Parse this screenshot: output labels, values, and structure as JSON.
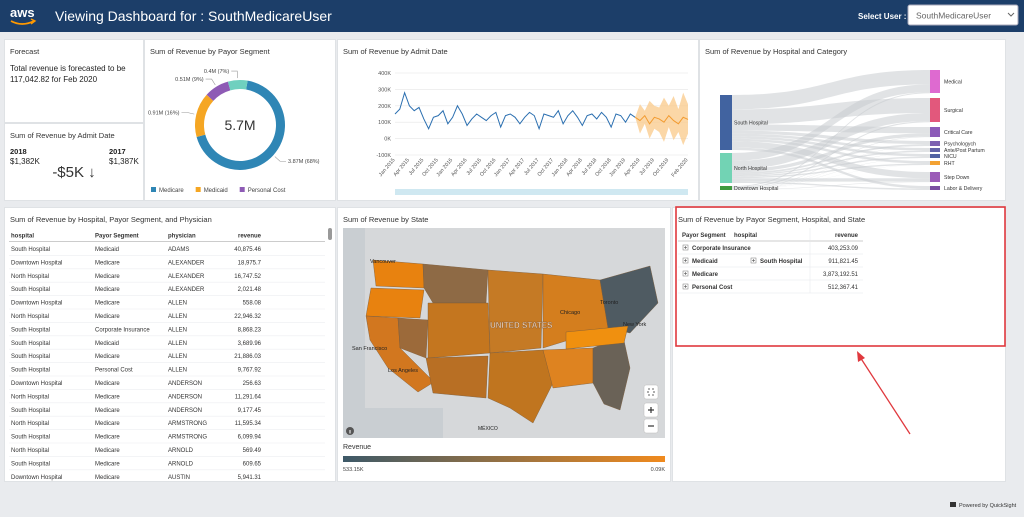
{
  "header": {
    "logo": "aws",
    "title": "Viewing Dashboard for : SouthMedicareUser",
    "select_label": "Select User :",
    "select_value": "SouthMedicareUser"
  },
  "forecast": {
    "title": "Forecast",
    "text": "Total revenue is forecasted to be 117,042.82 for Feb 2020"
  },
  "kpi": {
    "title": "Sum of Revenue by Admit Date",
    "current_label": "2018",
    "current": "$1,382K",
    "previous_label": "2017",
    "previous": "$1,387K",
    "delta": "-$5K ↓"
  },
  "donut": {
    "type": "pie",
    "title": "Sum of Revenue by Payor Segment",
    "center_label": "5.7M",
    "categories": [
      "Medicare",
      "Medicaid",
      "Personal Cost",
      null
    ],
    "values": [
      3.87,
      0.91,
      0.51,
      0.4
    ],
    "value_labels": [
      "3.87M (68%)",
      "0.91M (16%)",
      "0.51M (9%)",
      "0.4M (7%)"
    ],
    "colors": [
      "#2f86b5",
      "#f5a623",
      "#8e5bb5",
      "#6fd0bf"
    ]
  },
  "line": {
    "type": "line",
    "title": "Sum of Revenue by Admit Date",
    "categories": [
      "Jan 2015",
      null,
      null,
      "Apr 2015",
      null,
      null,
      "Jul 2015",
      null,
      null,
      "Oct 2015",
      null,
      null,
      "Jan 2016",
      null,
      null,
      "Apr 2016",
      null,
      null,
      "Jul 2016",
      null,
      null,
      "Oct 2016",
      null,
      null,
      "Jan 2017",
      null,
      null,
      "Apr 2017",
      null,
      null,
      "Jul 2017",
      null,
      null,
      "Oct 2017",
      null,
      null,
      "Jan 2018",
      null,
      null,
      "Apr 2018",
      null,
      null,
      "Jul 2018",
      null,
      null,
      "Oct 2018",
      null,
      null,
      "Jan 2019",
      null,
      null,
      "Apr 2019",
      null,
      null,
      "Jul 2019",
      null,
      null,
      "Oct 2019",
      null,
      null,
      null,
      "Feb 2020"
    ],
    "series": [
      {
        "color": "#2b6fb0",
        "values": [
          150000,
          180000,
          280000,
          200000,
          170000,
          190000,
          120000,
          60000,
          130000,
          140000,
          170000,
          90000,
          130000,
          200000,
          150000,
          80000,
          120000,
          150000,
          130000,
          110000,
          140000,
          160000,
          70000,
          140000,
          150000,
          130000,
          90000,
          130000,
          160000,
          140000,
          60000,
          150000,
          140000,
          130000,
          170000,
          90000,
          140000,
          170000,
          130000,
          80000,
          140000,
          150000,
          120000,
          160000,
          130000,
          70000,
          150000,
          140000,
          100000,
          150000,
          130000,
          null,
          null,
          null,
          null,
          null,
          null,
          null,
          null,
          null,
          null,
          null
        ]
      },
      {
        "color": "#f29b30",
        "band_color": "#f9c98a",
        "values": [
          null,
          null,
          null,
          null,
          null,
          null,
          null,
          null,
          null,
          null,
          null,
          null,
          null,
          null,
          null,
          null,
          null,
          null,
          null,
          null,
          null,
          null,
          null,
          null,
          null,
          null,
          null,
          null,
          null,
          null,
          null,
          null,
          null,
          null,
          null,
          null,
          null,
          null,
          null,
          null,
          null,
          null,
          null,
          null,
          null,
          null,
          null,
          null,
          null,
          null,
          130000,
          110000,
          140000,
          90000,
          130000,
          120000,
          100000,
          140000,
          110000,
          90000,
          130000,
          117043
        ],
        "upper": [
          null,
          null,
          null,
          null,
          null,
          null,
          null,
          null,
          null,
          null,
          null,
          null,
          null,
          null,
          null,
          null,
          null,
          null,
          null,
          null,
          null,
          null,
          null,
          null,
          null,
          null,
          null,
          null,
          null,
          null,
          null,
          null,
          null,
          null,
          null,
          null,
          null,
          null,
          null,
          null,
          null,
          null,
          null,
          null,
          null,
          null,
          null,
          null,
          null,
          null,
          130000,
          210000,
          170000,
          230000,
          200000,
          190000,
          250000,
          200000,
          260000,
          180000,
          280000,
          210000
        ],
        "lower": [
          null,
          null,
          null,
          null,
          null,
          null,
          null,
          null,
          null,
          null,
          null,
          null,
          null,
          null,
          null,
          null,
          null,
          null,
          null,
          null,
          null,
          null,
          null,
          null,
          null,
          null,
          null,
          null,
          null,
          null,
          null,
          null,
          null,
          null,
          null,
          null,
          null,
          null,
          null,
          null,
          null,
          null,
          null,
          null,
          null,
          null,
          null,
          null,
          null,
          null,
          130000,
          30000,
          90000,
          0,
          60000,
          40000,
          -20000,
          70000,
          -10000,
          40000,
          -40000,
          30000
        ]
      }
    ],
    "ylim": [
      -100000,
      400000
    ],
    "yticks": [
      {
        "value": -100000,
        "label": "-100K"
      },
      {
        "value": 0,
        "label": "0K"
      },
      {
        "value": 100000,
        "label": "100K"
      },
      {
        "value": 200000,
        "label": "200K"
      },
      {
        "value": 300000,
        "label": "300K"
      },
      {
        "value": 400000,
        "label": "400K"
      }
    ],
    "grid": true
  },
  "sankey": {
    "title": "Sum of Revenue by Hospital and Category",
    "sources": [
      "South Hospital",
      "North Hospital",
      "Downtown Hospital"
    ],
    "targets": [
      "Medical",
      "Surgical",
      "Critical Care",
      "Psychologych",
      "Ante/Post Partum",
      "NICU",
      "RHT",
      "Step Down",
      "Labor & Delivery"
    ]
  },
  "table": {
    "title": "Sum of Revenue by Hospital, Payor Segment, and Physician",
    "columns": [
      "hospital",
      "Payor Segment",
      "physician",
      "revenue"
    ],
    "rows": [
      [
        "South Hospital",
        "Medicaid",
        "ADAMS",
        "40,875.46"
      ],
      [
        "Downtown Hospital",
        "Medicare",
        "ALEXANDER",
        "18,975.7"
      ],
      [
        "North Hospital",
        "Medicare",
        "ALEXANDER",
        "16,747.52"
      ],
      [
        "South Hospital",
        "Medicare",
        "ALEXANDER",
        "2,021.48"
      ],
      [
        "Downtown Hospital",
        "Medicare",
        "ALLEN",
        "558.08"
      ],
      [
        "North Hospital",
        "Medicare",
        "ALLEN",
        "22,946.32"
      ],
      [
        "South Hospital",
        "Corporate Insurance",
        "ALLEN",
        "8,868.23"
      ],
      [
        "South Hospital",
        "Medicaid",
        "ALLEN",
        "3,689.96"
      ],
      [
        "South Hospital",
        "Medicare",
        "ALLEN",
        "21,886.03"
      ],
      [
        "South Hospital",
        "Personal Cost",
        "ALLEN",
        "9,767.92"
      ],
      [
        "Downtown Hospital",
        "Medicare",
        "ANDERSON",
        "256.63"
      ],
      [
        "North Hospital",
        "Medicare",
        "ANDERSON",
        "11,291.64"
      ],
      [
        "South Hospital",
        "Medicare",
        "ANDERSON",
        "9,177.45"
      ],
      [
        "North Hospital",
        "Medicare",
        "ARMSTRONG",
        "11,595.34"
      ],
      [
        "South Hospital",
        "Medicare",
        "ARMSTRONG",
        "6,099.94"
      ],
      [
        "North Hospital",
        "Medicare",
        "ARNOLD",
        "569.49"
      ],
      [
        "South Hospital",
        "Medicare",
        "ARNOLD",
        "609.65"
      ],
      [
        "Downtown Hospital",
        "Medicare",
        "AUSTIN",
        "5,941.31"
      ]
    ]
  },
  "map": {
    "title": "Sum of Revenue by State",
    "places": [
      "Vancouver",
      "San Francisco",
      "Los Angeles",
      "Chicago",
      "Toronto",
      "New York",
      "UNITED STATES",
      "MÉXICO"
    ],
    "legend_title": "Revenue",
    "legend_max": "533.15K",
    "legend_min": "0.09K"
  },
  "pivot": {
    "title": "Sum of Revenue by Payor Segment, Hospital, and State",
    "columns": [
      "Payor Segment",
      "hospital",
      "revenue"
    ],
    "rows": [
      {
        "segment": "Corporate Insurance",
        "revenue": "403,253.09"
      },
      {
        "segment": "Medicaid",
        "hospital": "South Hospital",
        "revenue": "911,821.45"
      },
      {
        "segment": "Medicare",
        "revenue": "3,873,192.51"
      },
      {
        "segment": "Personal Cost",
        "revenue": "512,367.41"
      }
    ]
  },
  "footer": {
    "text": "Powered by QuickSight"
  }
}
